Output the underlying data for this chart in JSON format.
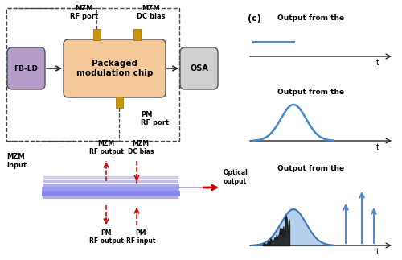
{
  "bg_color": "#ffffff",
  "block_chip_color": "#f5c89a",
  "block_chip_label": "Packaged\nmodulation chip",
  "block_ld_color": "#b59cc8",
  "block_ld_label": "FB-LD",
  "block_osa_color": "#d0d0d0",
  "block_osa_label": "OSA",
  "connector_color": "#c8960a",
  "arrow_color": "#222222",
  "red_arrow_color": "#cc0000",
  "blue_color": "#4477bb",
  "purple_color": "#8888dd",
  "label_mzm_rf": "MZM\nRF port",
  "label_mzm_dc": "MZM\nDC bias",
  "label_pm_rf": "PM\nRF port",
  "label_mzm_input": "MZM\ninput",
  "label_mzm_rf_output": "MZM\nRF output",
  "label_mzm_dc_bias": "MZM\nDC bias",
  "label_pm_rf_output": "PM\nRF output",
  "label_pm_rf_input": "PM\nRF input",
  "label_optical_output": "Optical\noutput",
  "label_c": "(c)",
  "label_out1": "Output from the",
  "label_out2": "Output from the",
  "label_out3": "Output from the"
}
